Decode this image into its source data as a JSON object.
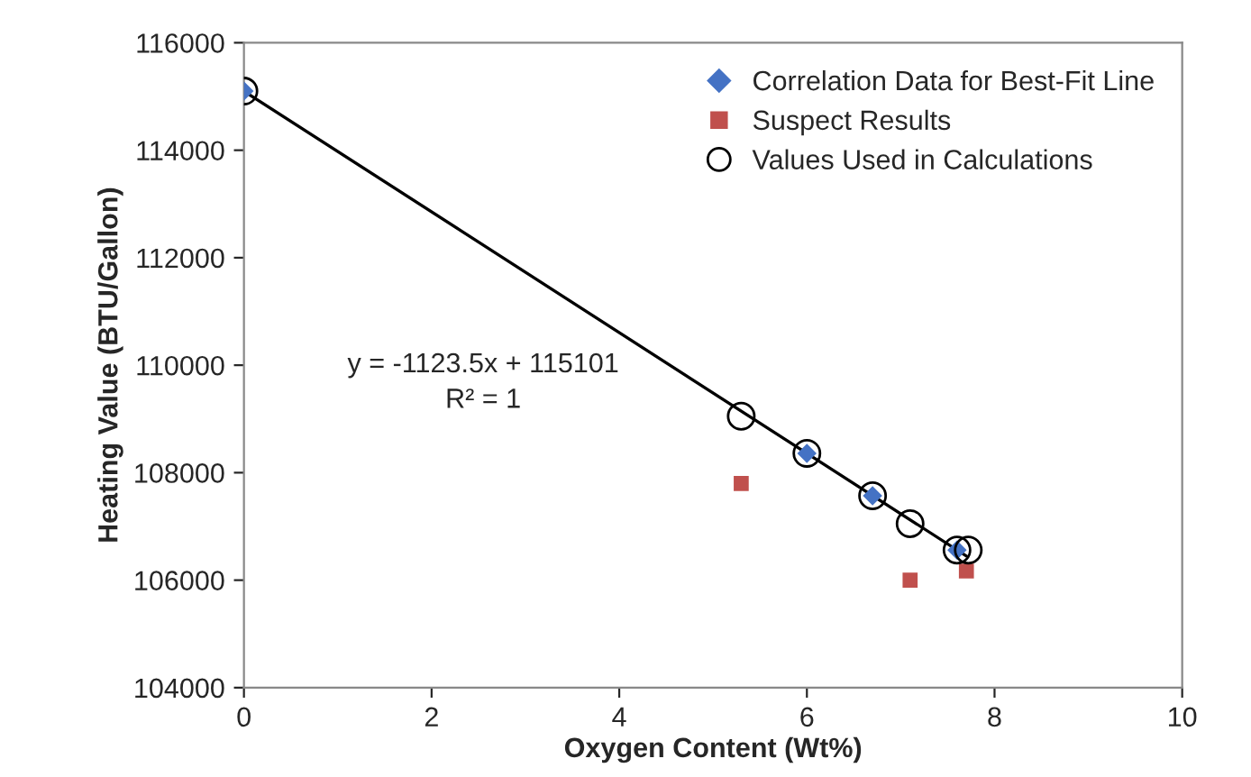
{
  "chart_data": {
    "type": "scatter",
    "xlabel": "Oxygen Content (Wt%)",
    "ylabel": "Heating Value (BTU/Gallon)",
    "xlim": [
      0,
      10
    ],
    "xticks": [
      0,
      2,
      4,
      6,
      8,
      10
    ],
    "ylim": [
      104000,
      116000
    ],
    "yticks": [
      104000,
      106000,
      108000,
      110000,
      112000,
      114000,
      116000
    ],
    "grid": false,
    "legend": "top right",
    "annotations": [
      "y = -1123.5x + 115101",
      "R² = 1"
    ],
    "series": [
      {
        "type": "line",
        "color": "#000000",
        "x": [
          0,
          7.7
        ],
        "values": [
          115100,
          106450
        ],
        "marker": "none"
      },
      {
        "name": "Correlation Data for Best-Fit Line",
        "color": "#4472c4",
        "marker": "diamond",
        "x": [
          0,
          6,
          6.7,
          7.6
        ],
        "values": [
          115100,
          108360,
          107570,
          106560
        ]
      },
      {
        "name": "Suspect Results",
        "color": "#c0504d",
        "marker": "square",
        "x": [
          5.3,
          7.1,
          7.7
        ],
        "values": [
          107800,
          106000,
          106170
        ]
      },
      {
        "name": "Values Used in Calculations",
        "color": "#000000",
        "marker": "circle",
        "x": [
          0,
          5.3,
          6,
          6.7,
          7.1,
          7.6,
          7.72
        ],
        "values": [
          115100,
          109050,
          108360,
          107570,
          107050,
          106560,
          106560
        ]
      }
    ]
  }
}
